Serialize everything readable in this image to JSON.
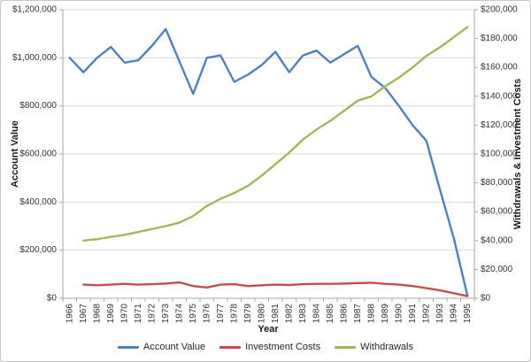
{
  "chart_data": {
    "type": "line",
    "title": "",
    "categories": [
      "1966",
      "1967",
      "1968",
      "1969",
      "1970",
      "1971",
      "1972",
      "1973",
      "1974",
      "1975",
      "1976",
      "1977",
      "1978",
      "1979",
      "1980",
      "1981",
      "1982",
      "1983",
      "1984",
      "1985",
      "1986",
      "1987",
      "1988",
      "1989",
      "1990",
      "1991",
      "1992",
      "1993",
      "1994",
      "1995"
    ],
    "series": [
      {
        "name": "Account Value",
        "axis": "left",
        "color": "#4F81BD",
        "values": [
          1000000,
          940000,
          1000000,
          1045000,
          980000,
          990000,
          1050000,
          1120000,
          985000,
          850000,
          1000000,
          1010000,
          900000,
          930000,
          970000,
          1025000,
          940000,
          1010000,
          1030000,
          980000,
          1015000,
          1050000,
          920000,
          875000,
          800000,
          720000,
          655000,
          450000,
          250000,
          10000
        ]
      },
      {
        "name": "Investment Costs",
        "axis": "right",
        "color": "#C0504D",
        "values": [
          null,
          9500,
          9000,
          9500,
          10000,
          9500,
          9800,
          10200,
          11000,
          8500,
          7500,
          9500,
          9800,
          8500,
          9000,
          9500,
          9200,
          9800,
          10000,
          10000,
          10200,
          10500,
          10800,
          10000,
          9500,
          8500,
          7000,
          5500,
          3500,
          1500
        ]
      },
      {
        "name": "Withdrawals",
        "axis": "right",
        "color": "#9BBB59",
        "values": [
          null,
          40000,
          41000,
          42500,
          44000,
          46000,
          48000,
          50000,
          52500,
          57000,
          64000,
          69000,
          73000,
          78000,
          85000,
          93000,
          101000,
          110000,
          117000,
          123000,
          130000,
          137000,
          140000,
          147000,
          153000,
          160000,
          168000,
          174000,
          181000,
          188000
        ]
      }
    ],
    "axes": {
      "x": {
        "label": "Year",
        "tick_labels": [
          "1966",
          "1967",
          "1968",
          "1969",
          "1970",
          "1971",
          "1972",
          "1973",
          "1974",
          "1975",
          "1976",
          "1977",
          "1978",
          "1979",
          "1980",
          "1981",
          "1982",
          "1983",
          "1984",
          "1985",
          "1986",
          "1987",
          "1988",
          "1989",
          "1990",
          "1991",
          "1992",
          "1993",
          "1994",
          "1995"
        ]
      },
      "left": {
        "label": "Account Value",
        "min": 0,
        "max": 1200000,
        "step": 200000,
        "tick_labels": [
          "$0",
          "$200,000",
          "$400,000",
          "$600,000",
          "$800,000",
          "$1,000,000",
          "$1,200,000"
        ]
      },
      "right": {
        "label": "Withdrawals & Investment Costs",
        "min": 0,
        "max": 200000,
        "step": 20000,
        "tick_labels": [
          "$0",
          "$20,000",
          "$40,000",
          "$60,000",
          "$80,000",
          "$100,000",
          "$120,000",
          "$140,000",
          "$160,000",
          "$180,000",
          "$200,000"
        ]
      }
    },
    "legend": {
      "position": "bottom",
      "entries": [
        "Account Value",
        "Investment Costs",
        "Withdrawals"
      ]
    },
    "style": {
      "gridline_color": "#D9D9D9",
      "axis_line_color": "#A6A6A6",
      "tick_text_color": "#333333",
      "line_width": 2.4
    }
  }
}
